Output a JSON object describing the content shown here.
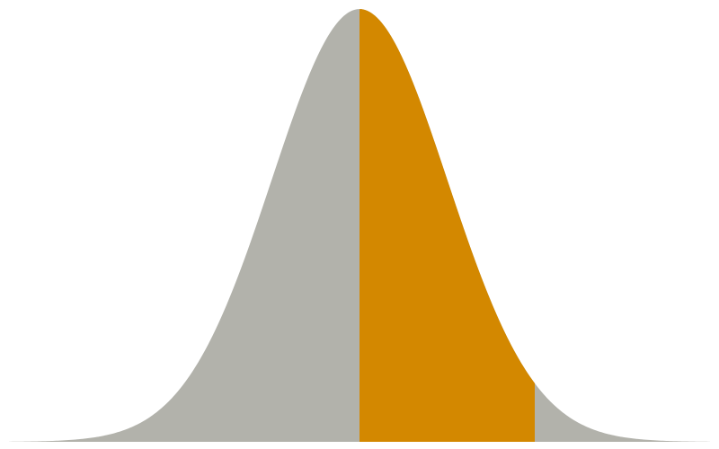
{
  "chart_data": {
    "type": "area",
    "distribution": "standard-normal",
    "mean": 0,
    "std": 1,
    "xlim": [
      -4,
      4
    ],
    "ylim": [
      0,
      0.399
    ],
    "shaded_region": [
      0,
      2
    ],
    "grid": false,
    "colors": {
      "curve_fill": "#b2b2ab",
      "shaded_fill": "#d38800",
      "background": "#ffffff"
    }
  }
}
